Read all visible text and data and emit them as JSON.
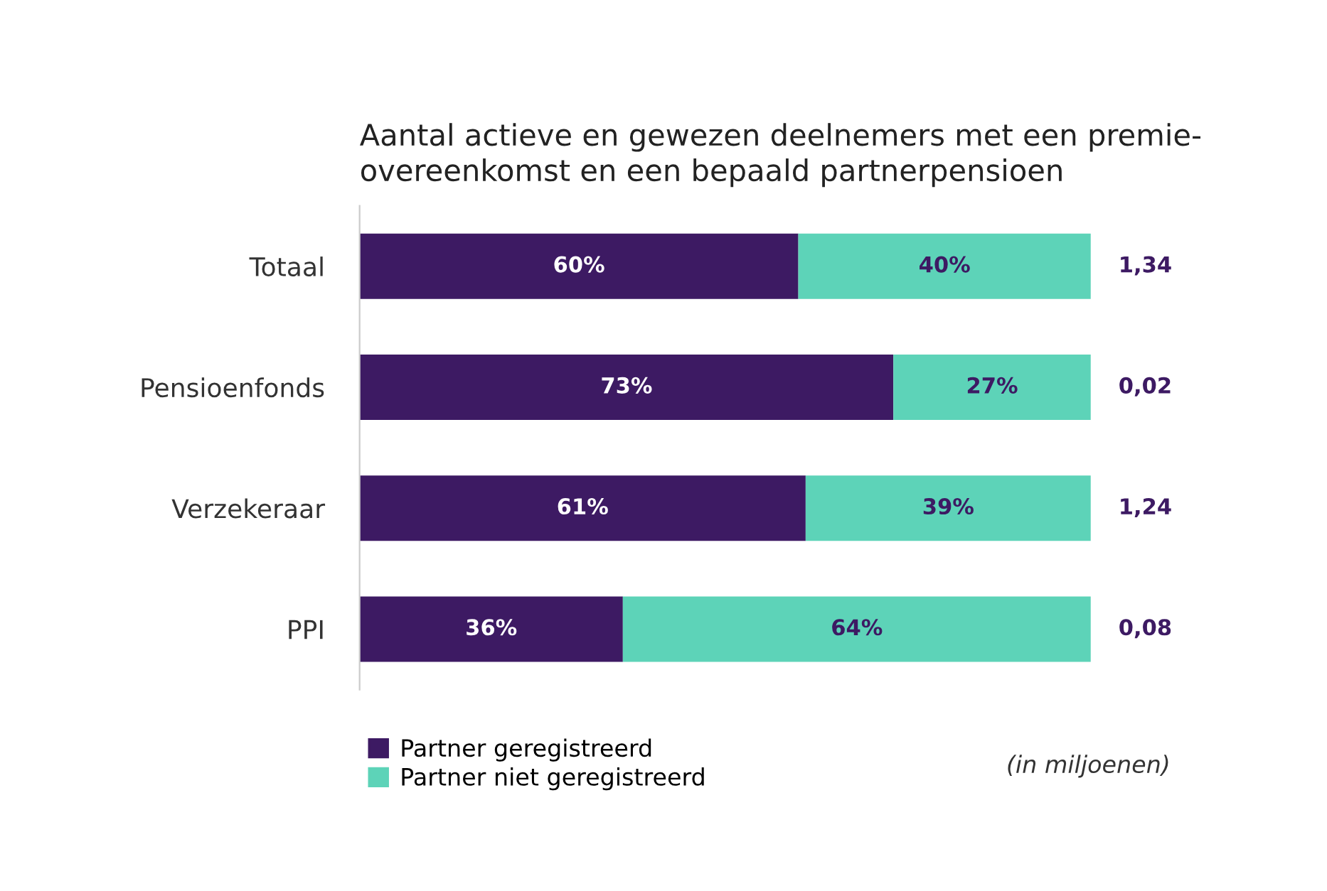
{
  "chart_data": {
    "type": "bar",
    "orientation": "horizontal",
    "stacked": true,
    "title": "Aantal actieve en gewezen deelnemers met een premie-\novereenkomst en een bepaald partnerpensioen",
    "categories": [
      "Totaal",
      "Pensioenfonds",
      "Verzekeraar",
      "PPI"
    ],
    "series": [
      {
        "name": "Partner geregistreerd",
        "color": "#3d1a63",
        "values": [
          60,
          73,
          61,
          36
        ],
        "value_labels": [
          "60%",
          "73%",
          "61%",
          "36%"
        ]
      },
      {
        "name": "Partner niet geregistreerd",
        "color": "#5dd3b8",
        "values": [
          40,
          27,
          39,
          64
        ],
        "value_labels": [
          "40%",
          "27%",
          "39%",
          "64%"
        ]
      }
    ],
    "tick_labels": "y",
    "grid": false,
    "legend": "bottom left",
    "annotations": [
      "1,34",
      "0,02",
      "1,24",
      "0,08",
      "(in miljoenen)"
    ]
  }
}
